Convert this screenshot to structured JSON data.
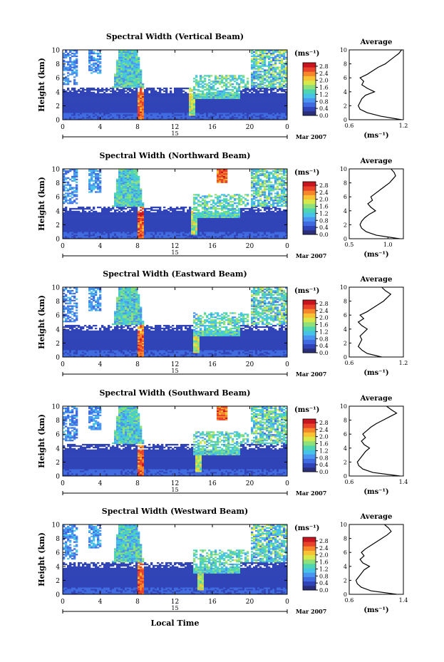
{
  "chart_data": {
    "type": "heatmap",
    "shared": {
      "x_ticks": [
        "0",
        "4",
        "8",
        "12",
        "16",
        "20",
        "0"
      ],
      "xlim": [
        0,
        24
      ],
      "y_ticks": [
        "0",
        "2",
        "4",
        "6",
        "8",
        "10"
      ],
      "ylim": [
        0,
        10
      ],
      "ylabel": "Height (km)",
      "date_day": "15",
      "date_month_year": "Mar 2007",
      "xlabel": "Local Time",
      "unit_label": "(ms⁻¹)",
      "colorbar_ticks": [
        "0.0",
        "0.4",
        "0.8",
        "1.2",
        "1.6",
        "2.0",
        "2.4",
        "2.8"
      ],
      "colorbar_range": [
        0,
        3.0
      ],
      "colormap": [
        "#2b2f7a",
        "#3044b8",
        "#3f6ae0",
        "#4a95f0",
        "#48c3e8",
        "#4ed6b0",
        "#8de07a",
        "#d7e84a",
        "#f7c234",
        "#f5862a",
        "#e8432a",
        "#c8141e"
      ],
      "avg_title": "Average",
      "avg_xlabel": "(ms⁻¹)"
    },
    "panels": [
      {
        "title": "Spectral Width (Vertical Beam)",
        "avg_ticks": [
          "0.6",
          "1.2"
        ],
        "avg_xlim": [
          0.6,
          1.2
        ],
        "avg_profile": {
          "heights": [
            0,
            0.5,
            1,
            1.5,
            2,
            2.5,
            3,
            3.5,
            4,
            4.5,
            5,
            5.5,
            6,
            6.5,
            7,
            7.5,
            8,
            8.5,
            9,
            9.5,
            10
          ],
          "values": [
            1.18,
            0.95,
            0.8,
            0.72,
            0.7,
            0.72,
            0.74,
            0.78,
            0.88,
            0.8,
            0.74,
            0.76,
            0.72,
            0.8,
            0.86,
            0.92,
            1.0,
            1.05,
            1.1,
            1.15,
            1.18
          ]
        }
      },
      {
        "title": "Spectral Width (Northward Beam)",
        "avg_ticks": [
          "0.5",
          "1.0"
        ],
        "avg_xlim": [
          0.5,
          1.2
        ],
        "avg_profile": {
          "heights": [
            0,
            0.5,
            1,
            1.5,
            2,
            2.5,
            3,
            3.5,
            4,
            4.5,
            5,
            5.5,
            6,
            6.5,
            7,
            7.5,
            8,
            8.5,
            9,
            9.5,
            10
          ],
          "values": [
            1.15,
            0.85,
            0.72,
            0.66,
            0.64,
            0.66,
            0.7,
            0.76,
            0.84,
            0.78,
            0.74,
            0.8,
            0.78,
            0.84,
            0.9,
            0.96,
            1.02,
            1.06,
            1.1,
            1.08,
            1.04
          ]
        }
      },
      {
        "title": "Spectral Width (Eastward Beam)",
        "avg_ticks": [
          "0.6",
          "1.2"
        ],
        "avg_xlim": [
          0.6,
          1.2
        ],
        "avg_profile": {
          "heights": [
            0,
            0.5,
            1,
            1.5,
            2,
            2.5,
            3,
            3.5,
            4,
            4.5,
            5,
            5.5,
            6,
            6.5,
            7,
            7.5,
            8,
            8.5,
            9,
            9.5,
            10
          ],
          "values": [
            0.96,
            0.8,
            0.74,
            0.7,
            0.72,
            0.74,
            0.72,
            0.76,
            0.8,
            0.74,
            0.7,
            0.76,
            0.72,
            0.8,
            0.86,
            0.92,
            0.98,
            1.02,
            1.06,
            1.0,
            0.96
          ]
        }
      },
      {
        "title": "Spectral Width (Southward Beam)",
        "avg_ticks": [
          "0.6",
          "1.4"
        ],
        "avg_xlim": [
          0.6,
          1.4
        ],
        "avg_profile": {
          "heights": [
            0,
            0.5,
            1,
            1.5,
            2,
            2.5,
            3,
            3.5,
            4,
            4.5,
            5,
            5.5,
            6,
            6.5,
            7,
            7.5,
            8,
            8.5,
            9,
            9.5,
            10
          ],
          "values": [
            1.35,
            0.95,
            0.8,
            0.74,
            0.72,
            0.76,
            0.8,
            0.84,
            0.9,
            0.82,
            0.78,
            0.84,
            0.8,
            0.86,
            0.92,
            1.0,
            1.1,
            1.2,
            1.3,
            1.22,
            1.15
          ]
        }
      },
      {
        "title": "Spectral Width (Westward Beam)",
        "avg_ticks": [
          "0.6",
          "1.4"
        ],
        "avg_xlim": [
          0.6,
          1.4
        ],
        "avg_profile": {
          "heights": [
            0,
            0.5,
            1,
            1.5,
            2,
            2.5,
            3,
            3.5,
            4,
            4.5,
            5,
            5.5,
            6,
            6.5,
            7,
            7.5,
            8,
            8.5,
            9,
            9.5,
            10
          ],
          "values": [
            1.3,
            0.92,
            0.78,
            0.72,
            0.7,
            0.74,
            0.78,
            0.82,
            0.9,
            0.8,
            0.76,
            0.82,
            0.78,
            0.84,
            0.92,
            1.0,
            1.08,
            1.16,
            1.22,
            1.18,
            1.12
          ]
        }
      }
    ]
  }
}
